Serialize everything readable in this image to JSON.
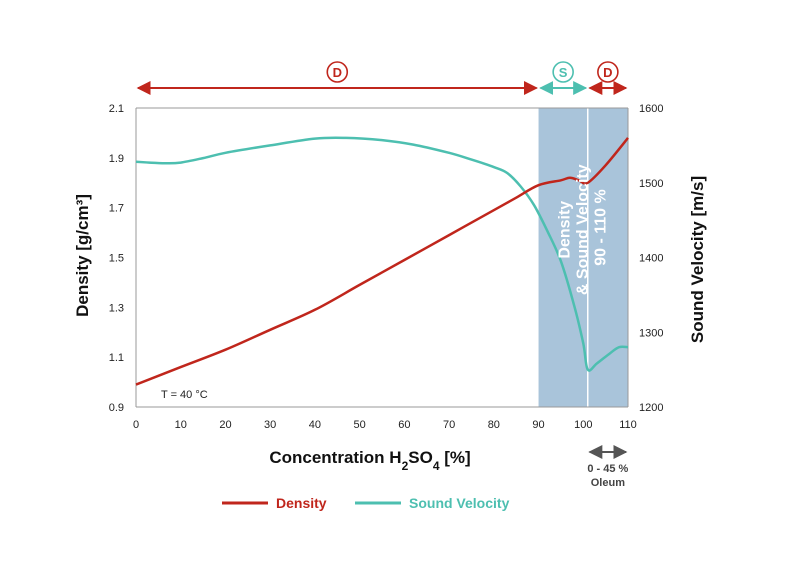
{
  "chart_data": {
    "type": "line",
    "title": "",
    "xlabel_main": "Concentration H",
    "xlabel_sub1": "2",
    "xlabel_mid": "SO",
    "xlabel_sub2": "4",
    "xlabel_end": " [%]",
    "ylabel_left": "Density [g/cm³]",
    "ylabel_right": "Sound Velocity [m/s]",
    "xlim": [
      0,
      110
    ],
    "ylim_left": [
      0.9,
      2.1
    ],
    "ylim_right": [
      1200,
      1600
    ],
    "x_ticks": [
      "0",
      "10",
      "20",
      "30",
      "40",
      "50",
      "60",
      "70",
      "80",
      "90",
      "100",
      "110"
    ],
    "y_left_ticks": [
      "0.9",
      "1.1",
      "1.3",
      "1.5",
      "1.7",
      "1.9",
      "2.1"
    ],
    "y_right_ticks": [
      "1200",
      "1300",
      "1400",
      "1500",
      "1600"
    ],
    "series": [
      {
        "name": "Density",
        "axis": "left",
        "color": "#c0261c",
        "x": [
          0,
          10,
          20,
          30,
          40,
          50,
          60,
          70,
          80,
          85,
          90,
          95,
          97,
          99,
          101,
          105,
          110
        ],
        "y": [
          0.99,
          1.06,
          1.13,
          1.21,
          1.29,
          1.39,
          1.49,
          1.59,
          1.69,
          1.74,
          1.79,
          1.81,
          1.82,
          1.81,
          1.8,
          1.87,
          1.98
        ]
      },
      {
        "name": "Sound Velocity",
        "axis": "right",
        "color": "#4dbfb0",
        "x": [
          0,
          3,
          7,
          10,
          15,
          20,
          30,
          40,
          47,
          55,
          62,
          70,
          75,
          80,
          83,
          86,
          89,
          92,
          95,
          98,
          100,
          101,
          103,
          106,
          108,
          110
        ],
        "y": [
          1528,
          1527,
          1526,
          1527,
          1533,
          1540,
          1550,
          1559,
          1560,
          1557,
          1551,
          1540,
          1531,
          1521,
          1513,
          1495,
          1470,
          1435,
          1395,
          1335,
          1285,
          1250,
          1258,
          1272,
          1280,
          1280
        ]
      }
    ],
    "annotation": "T = 40 °C",
    "band": {
      "x_range": [
        90,
        110
      ],
      "split_at": 101,
      "line1": "Density",
      "line2": "& Sound Velocity",
      "line3": "90 - 110 %",
      "color": "#a9c4da"
    },
    "regions": [
      {
        "letter": "D",
        "from": 0,
        "to": 90,
        "color": "#c0261c"
      },
      {
        "letter": "S",
        "from": 90,
        "to": 101,
        "color": "#4dbfb0"
      },
      {
        "letter": "D",
        "from": 101,
        "to": 110,
        "color": "#c0261c"
      }
    ],
    "oleum": {
      "from": 101,
      "to": 110,
      "line1": "0 - 45 %",
      "line2": "Oleum",
      "color": "#555555"
    },
    "legend": {
      "placement": "bottom",
      "density": "Density",
      "sound_velocity": "Sound Velocity"
    }
  }
}
